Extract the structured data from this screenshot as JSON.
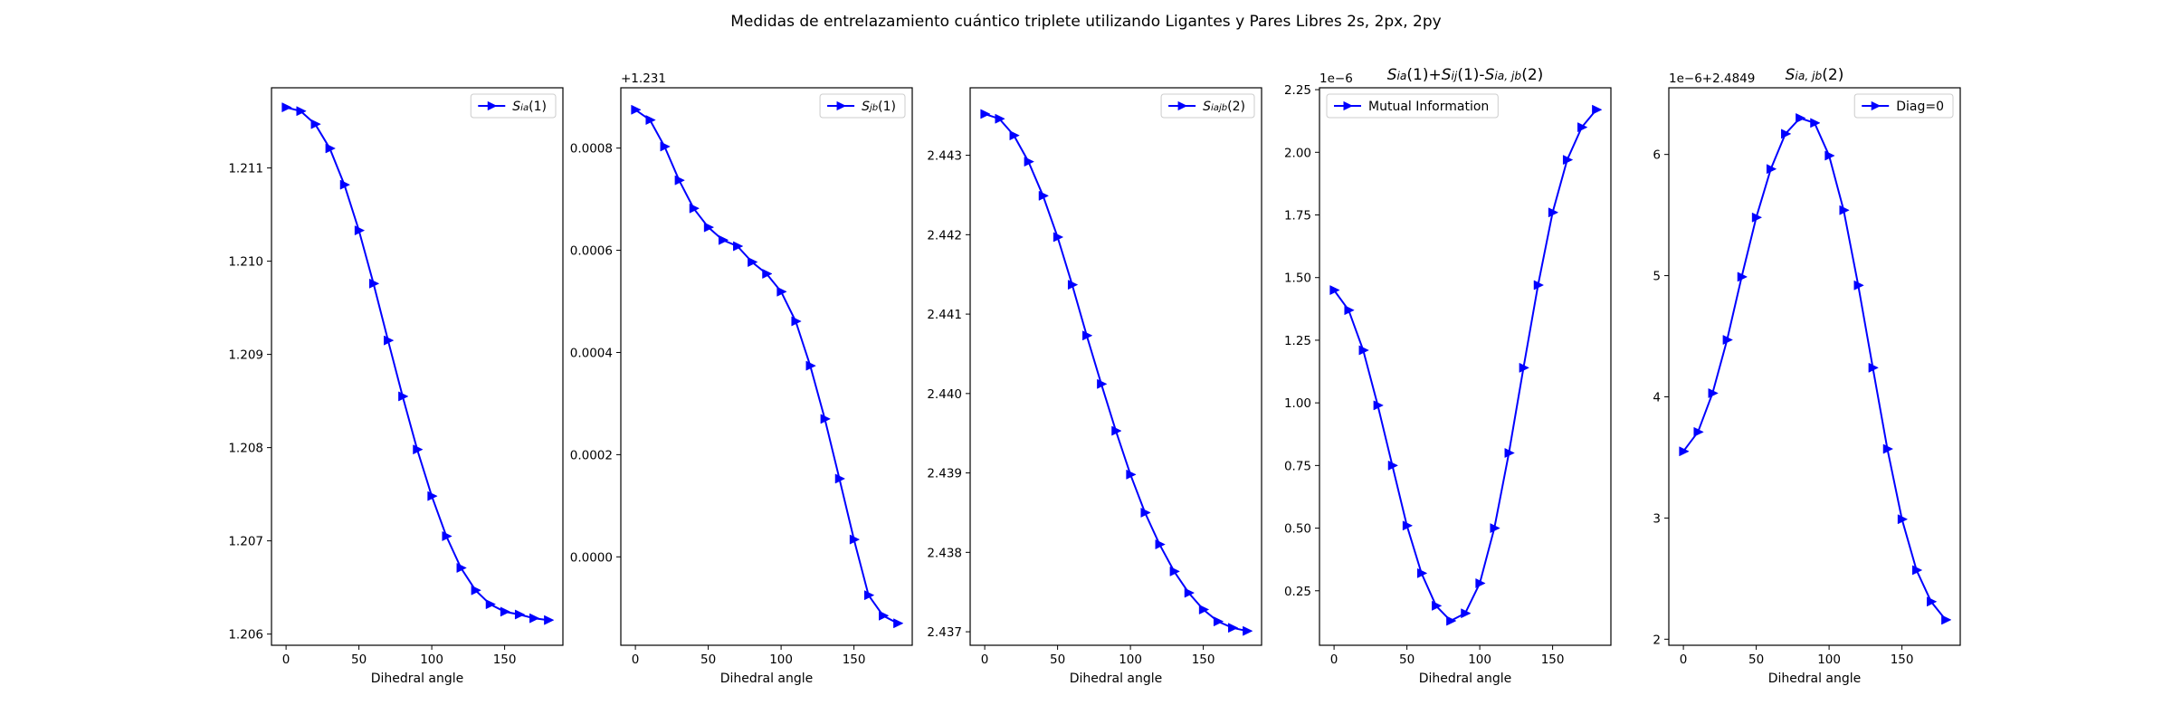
{
  "figure": {
    "suptitle": "Medidas de entrelazamiento cuántico triplete utilizando Ligantes y Pares Libres 2s, 2px, 2py"
  },
  "chart_data": [
    {
      "type": "line",
      "title": "",
      "xlabel": "Dihedral angle",
      "ylabel": "",
      "offset_text": "",
      "xlim": [
        -10,
        190
      ],
      "ylim": [
        1.20588,
        1.21186
      ],
      "xticks": [
        0,
        50,
        100,
        150
      ],
      "xtick_labels": [
        "0",
        "50",
        "100",
        "150"
      ],
      "yticks": [
        1.206,
        1.207,
        1.208,
        1.209,
        1.21,
        1.211
      ],
      "ytick_labels": [
        "1.206",
        "1.207",
        "1.208",
        "1.209",
        "1.210",
        "1.211"
      ],
      "legend": {
        "position": "top-right",
        "parts": [
          {
            "t": "S"
          },
          {
            "t": "ia",
            "sub": true
          },
          {
            "t": "(1)"
          }
        ]
      },
      "color": "#0000ff",
      "series": [
        {
          "x": [
            0,
            10,
            20,
            30,
            40,
            50,
            60,
            70,
            80,
            90,
            100,
            110,
            120,
            130,
            140,
            150,
            160,
            170,
            180
          ],
          "values": [
            1.21165,
            1.21161,
            1.21147,
            1.21121,
            1.21082,
            1.21033,
            1.20976,
            1.20915,
            1.20855,
            1.20798,
            1.20748,
            1.20705,
            1.20671,
            1.20647,
            1.20632,
            1.20624,
            1.20621,
            1.20617,
            1.20615
          ]
        }
      ]
    },
    {
      "type": "line",
      "title": "",
      "xlabel": "Dihedral angle",
      "ylabel": "",
      "offset_text": "+1.231",
      "xlim": [
        -10,
        190
      ],
      "ylim": [
        -0.000173,
        0.000918
      ],
      "xticks": [
        0,
        50,
        100,
        150
      ],
      "xtick_labels": [
        "0",
        "50",
        "100",
        "150"
      ],
      "yticks": [
        0.0,
        0.0002,
        0.0004,
        0.0006,
        0.0008
      ],
      "ytick_labels": [
        "0.0000",
        "0.0002",
        "0.0004",
        "0.0006",
        "0.0008"
      ],
      "legend": {
        "position": "top-right",
        "parts": [
          {
            "t": "S"
          },
          {
            "t": "jb",
            "sub": true
          },
          {
            "t": "(1)"
          }
        ]
      },
      "color": "#0000ff",
      "series": [
        {
          "x": [
            0,
            10,
            20,
            30,
            40,
            50,
            60,
            70,
            80,
            90,
            100,
            110,
            120,
            130,
            140,
            150,
            160,
            170,
            180
          ],
          "values": [
            0.000875,
            0.000855,
            0.000803,
            0.000737,
            0.000682,
            0.000645,
            0.00062,
            0.000608,
            0.000577,
            0.000554,
            0.000519,
            0.000461,
            0.000374,
            0.00027,
            0.000153,
            3.4e-05,
            -7.5e-05,
            -0.000115,
            -0.00013
          ]
        }
      ]
    },
    {
      "type": "line",
      "title": "",
      "xlabel": "Dihedral angle",
      "ylabel": "",
      "offset_text": "",
      "xlim": [
        -10,
        190
      ],
      "ylim": [
        2.43683,
        2.44385
      ],
      "xticks": [
        0,
        50,
        100,
        150
      ],
      "xtick_labels": [
        "0",
        "50",
        "100",
        "150"
      ],
      "yticks": [
        2.437,
        2.438,
        2.439,
        2.44,
        2.441,
        2.442,
        2.443
      ],
      "ytick_labels": [
        "2.437",
        "2.438",
        "2.439",
        "2.440",
        "2.441",
        "2.442",
        "2.443"
      ],
      "legend": {
        "position": "top-right",
        "parts": [
          {
            "t": "S"
          },
          {
            "t": "iajb",
            "sub": true
          },
          {
            "t": "(2)"
          }
        ]
      },
      "color": "#0000ff",
      "series": [
        {
          "x": [
            0,
            10,
            20,
            30,
            40,
            50,
            60,
            70,
            80,
            90,
            100,
            110,
            120,
            130,
            140,
            150,
            160,
            170,
            180
          ],
          "values": [
            2.44352,
            2.44346,
            2.44325,
            2.44292,
            2.44249,
            2.44197,
            2.44137,
            2.44073,
            2.44012,
            2.43953,
            2.43898,
            2.4385,
            2.4381,
            2.43776,
            2.43749,
            2.43728,
            2.43713,
            2.43705,
            2.43701
          ]
        }
      ]
    },
    {
      "type": "line",
      "title_parts": [
        {
          "t": "S"
        },
        {
          "t": "ia",
          "sub": true
        },
        {
          "t": "(1)+"
        },
        {
          "t": "S"
        },
        {
          "t": "ij",
          "sub": true
        },
        {
          "t": "(1)-"
        },
        {
          "t": "S"
        },
        {
          "t": "ia, jb",
          "sub": true
        },
        {
          "t": "(2)"
        }
      ],
      "xlabel": "Dihedral angle",
      "ylabel": "",
      "offset_text": "1e−6",
      "xlim": [
        -10,
        190
      ],
      "ylim": [
        0.0325,
        2.2575
      ],
      "xticks": [
        0,
        50,
        100,
        150
      ],
      "xtick_labels": [
        "0",
        "50",
        "100",
        "150"
      ],
      "yticks": [
        0.25,
        0.5,
        0.75,
        1.0,
        1.25,
        1.5,
        1.75,
        2.0,
        2.25
      ],
      "ytick_labels": [
        "0.25",
        "0.50",
        "0.75",
        "1.00",
        "1.25",
        "1.50",
        "1.75",
        "2.00",
        "2.25"
      ],
      "legend": {
        "position": "top-left",
        "parts": [
          {
            "t": "Mutual Information"
          }
        ]
      },
      "color": "#0000ff",
      "series": [
        {
          "x": [
            0,
            10,
            20,
            30,
            40,
            50,
            60,
            70,
            80,
            90,
            100,
            110,
            120,
            130,
            140,
            150,
            160,
            170,
            180
          ],
          "values": [
            1.45,
            1.37,
            1.21,
            0.99,
            0.75,
            0.51,
            0.32,
            0.19,
            0.13,
            0.16,
            0.28,
            0.5,
            0.8,
            1.14,
            1.47,
            1.76,
            1.97,
            2.1,
            2.17
          ]
        }
      ]
    },
    {
      "type": "line",
      "title_parts": [
        {
          "t": "S"
        },
        {
          "t": "ia, jb",
          "sub": true
        },
        {
          "t": "(2)"
        }
      ],
      "xlabel": "Dihedral angle",
      "ylabel": "",
      "offset_text": "1e−6+2.4849",
      "xlim": [
        -10,
        190
      ],
      "ylim": [
        1.95,
        6.55
      ],
      "xticks": [
        0,
        50,
        100,
        150
      ],
      "xtick_labels": [
        "0",
        "50",
        "100",
        "150"
      ],
      "yticks": [
        2,
        3,
        4,
        5,
        6
      ],
      "ytick_labels": [
        "2",
        "3",
        "4",
        "5",
        "6"
      ],
      "legend": {
        "position": "top-right",
        "parts": [
          {
            "t": "Diag=0"
          }
        ]
      },
      "color": "#0000ff",
      "series": [
        {
          "x": [
            0,
            10,
            20,
            30,
            40,
            50,
            60,
            70,
            80,
            90,
            100,
            110,
            120,
            130,
            140,
            150,
            160,
            170,
            180
          ],
          "values": [
            3.55,
            3.71,
            4.03,
            4.47,
            4.99,
            5.48,
            5.88,
            6.17,
            6.3,
            6.26,
            5.99,
            5.54,
            4.92,
            4.24,
            3.57,
            2.99,
            2.57,
            2.31,
            2.16
          ]
        }
      ]
    }
  ]
}
